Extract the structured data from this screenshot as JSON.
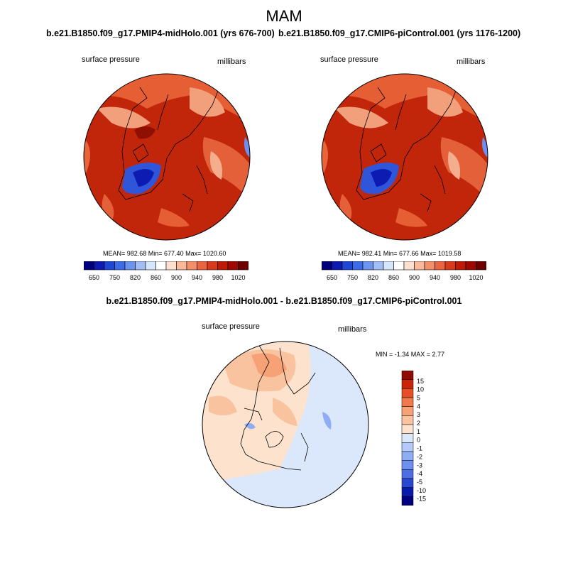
{
  "figure": {
    "season": "MAM",
    "left_title": "b.e21.B1850.f09_g17.PMIP4-midHolo.001 (yrs 676-700)",
    "right_title": "b.e21.B1850.f09_g17.CMIP6-piControl.001 (yrs 1176-1200)",
    "diff_title": "b.e21.B1850.f09_g17.PMIP4-midHolo.001 - b.e21.B1850.f09_g17.CMIP6-piControl.001"
  },
  "panels": {
    "left": {
      "variable": "surface pressure",
      "units": "millibars",
      "stats": "MEAN= 982.68  Min= 677.40  Max= 1020.60"
    },
    "right": {
      "variable": "surface pressure",
      "units": "millibars",
      "stats": "MEAN= 982.41  Min= 677.66  Max= 1019.58"
    },
    "diff": {
      "variable": "surface pressure",
      "units": "millibars",
      "stats": "MIN =  -1.34 MAX =   2.77"
    }
  },
  "colors": {
    "abs_levels": [
      "#00007f",
      "#0d1bb3",
      "#1f47d6",
      "#3d6ce8",
      "#6c93f0",
      "#a2bdf6",
      "#d6e6fc",
      "#ffffff",
      "#fde0cf",
      "#f9b899",
      "#f28f69",
      "#e9653f",
      "#d93a1c",
      "#bf1a06",
      "#a00900",
      "#6f0000"
    ],
    "diff_levels": [
      "#00007f",
      "#0a1aa8",
      "#2a47d0",
      "#4c6de3",
      "#6c8ff0",
      "#8fadf5",
      "#b5caf8",
      "#dbe8fc",
      "#fde3cd",
      "#fac3a0",
      "#f6a276",
      "#f07a4d",
      "#e54e26",
      "#c92308",
      "#8f0a00"
    ]
  },
  "chart_data": [
    {
      "type": "heatmap",
      "title": "surface pressure",
      "units": "millibars",
      "run": "b.e21.B1850.f09_g17.PMIP4-midHolo.001 (yrs 676-700)",
      "projection": "north polar stereographic",
      "mean": 982.68,
      "min": 677.4,
      "max": 1020.6,
      "colorbar_ticks": [
        "650",
        "750",
        "820",
        "860",
        "900",
        "940",
        "980",
        "1020"
      ]
    },
    {
      "type": "heatmap",
      "title": "surface pressure",
      "units": "millibars",
      "run": "b.e21.B1850.f09_g17.CMIP6-piControl.001 (yrs 1176-1200)",
      "projection": "north polar stereographic",
      "mean": 982.41,
      "min": 677.66,
      "max": 1019.58,
      "colorbar_ticks": [
        "650",
        "750",
        "820",
        "860",
        "900",
        "940",
        "980",
        "1020"
      ]
    },
    {
      "type": "heatmap",
      "title": "surface pressure",
      "units": "millibars",
      "run": "b.e21.B1850.f09_g17.PMIP4-midHolo.001 - b.e21.B1850.f09_g17.CMIP6-piControl.001",
      "projection": "north polar stereographic",
      "min": -1.34,
      "max": 2.77,
      "colorbar_ticks": [
        "15",
        "10",
        "5",
        "4",
        "3",
        "2",
        "1",
        "0",
        "-1",
        "-2",
        "-3",
        "-4",
        "-5",
        "-10",
        "-15"
      ]
    }
  ]
}
